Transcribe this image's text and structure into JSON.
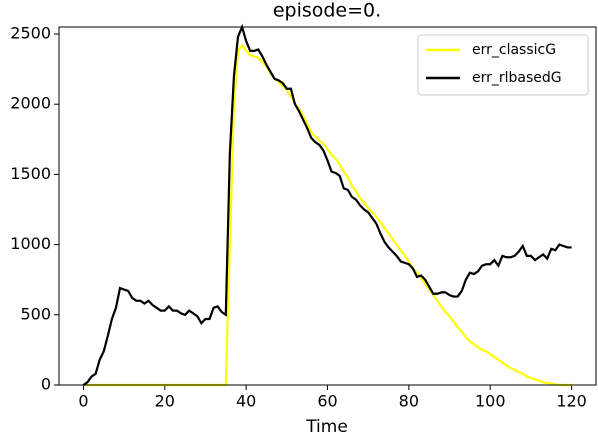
{
  "chart_data": {
    "type": "line",
    "title": "episode=0.",
    "xlabel": "Time",
    "x": [
      0,
      1,
      2,
      3,
      4,
      5,
      6,
      7,
      8,
      9,
      10,
      11,
      12,
      13,
      14,
      15,
      16,
      17,
      18,
      19,
      20,
      21,
      22,
      23,
      24,
      25,
      26,
      27,
      28,
      29,
      30,
      31,
      32,
      33,
      34,
      35,
      36,
      37,
      38,
      39,
      40,
      41,
      42,
      43,
      44,
      45,
      46,
      47,
      48,
      49,
      50,
      51,
      52,
      53,
      54,
      55,
      56,
      57,
      58,
      59,
      60,
      61,
      62,
      63,
      64,
      65,
      66,
      67,
      68,
      69,
      70,
      71,
      72,
      73,
      74,
      75,
      76,
      77,
      78,
      79,
      80,
      81,
      82,
      83,
      84,
      85,
      86,
      87,
      88,
      89,
      90,
      91,
      92,
      93,
      94,
      95,
      96,
      97,
      98,
      99,
      100,
      101,
      102,
      103,
      104,
      105,
      106,
      107,
      108,
      109,
      110,
      111,
      112,
      113,
      114,
      115,
      116,
      117,
      118,
      119,
      120
    ],
    "series": [
      {
        "name": "err_classicG",
        "color": "#ffff00",
        "values": [
          0,
          0,
          0,
          0,
          0,
          0,
          0,
          0,
          0,
          0,
          0,
          0,
          0,
          0,
          0,
          0,
          0,
          0,
          0,
          0,
          0,
          0,
          0,
          0,
          0,
          0,
          0,
          0,
          0,
          0,
          0,
          0,
          0,
          0,
          0,
          0,
          1000,
          2000,
          2380,
          2420,
          2380,
          2350,
          2340,
          2330,
          2300,
          2270,
          2220,
          2180,
          2160,
          2130,
          2100,
          2060,
          2000,
          1970,
          1920,
          1860,
          1800,
          1770,
          1740,
          1720,
          1680,
          1640,
          1610,
          1570,
          1520,
          1480,
          1420,
          1380,
          1330,
          1300,
          1260,
          1230,
          1200,
          1160,
          1120,
          1080,
          1040,
          1000,
          960,
          920,
          880,
          830,
          800,
          760,
          720,
          680,
          640,
          600,
          560,
          520,
          490,
          450,
          410,
          380,
          340,
          310,
          290,
          270,
          250,
          240,
          220,
          200,
          180,
          160,
          140,
          120,
          110,
          90,
          80,
          60,
          50,
          40,
          30,
          20,
          15,
          10,
          5,
          0,
          0,
          0,
          0
        ]
      },
      {
        "name": "err_rlbasedG",
        "color": "#000000",
        "values": [
          0,
          20,
          60,
          80,
          180,
          240,
          350,
          470,
          550,
          690,
          680,
          670,
          620,
          600,
          600,
          580,
          600,
          570,
          550,
          530,
          530,
          560,
          530,
          530,
          510,
          500,
          530,
          510,
          490,
          440,
          470,
          470,
          550,
          560,
          520,
          500,
          1650,
          2200,
          2480,
          2550,
          2450,
          2380,
          2380,
          2390,
          2340,
          2280,
          2230,
          2180,
          2170,
          2150,
          2110,
          2110,
          2000,
          1950,
          1890,
          1830,
          1760,
          1730,
          1710,
          1670,
          1600,
          1520,
          1510,
          1490,
          1400,
          1390,
          1340,
          1320,
          1280,
          1250,
          1230,
          1190,
          1150,
          1080,
          1020,
          980,
          950,
          920,
          880,
          870,
          860,
          830,
          770,
          780,
          750,
          700,
          650,
          650,
          660,
          660,
          640,
          630,
          630,
          670,
          750,
          800,
          790,
          810,
          850,
          860,
          860,
          890,
          850,
          920,
          910,
          910,
          920,
          950,
          990,
          920,
          920,
          890,
          910,
          930,
          900,
          970,
          960,
          1000,
          990,
          980,
          980
        ]
      }
    ],
    "xlim": [
      -6,
      126
    ],
    "xticks": [
      0,
      20,
      40,
      60,
      80,
      100,
      120
    ],
    "ylim": [
      0,
      2550
    ],
    "yticks": [
      0,
      500,
      1000,
      1500,
      2000,
      2500
    ],
    "legend": "upper right"
  }
}
